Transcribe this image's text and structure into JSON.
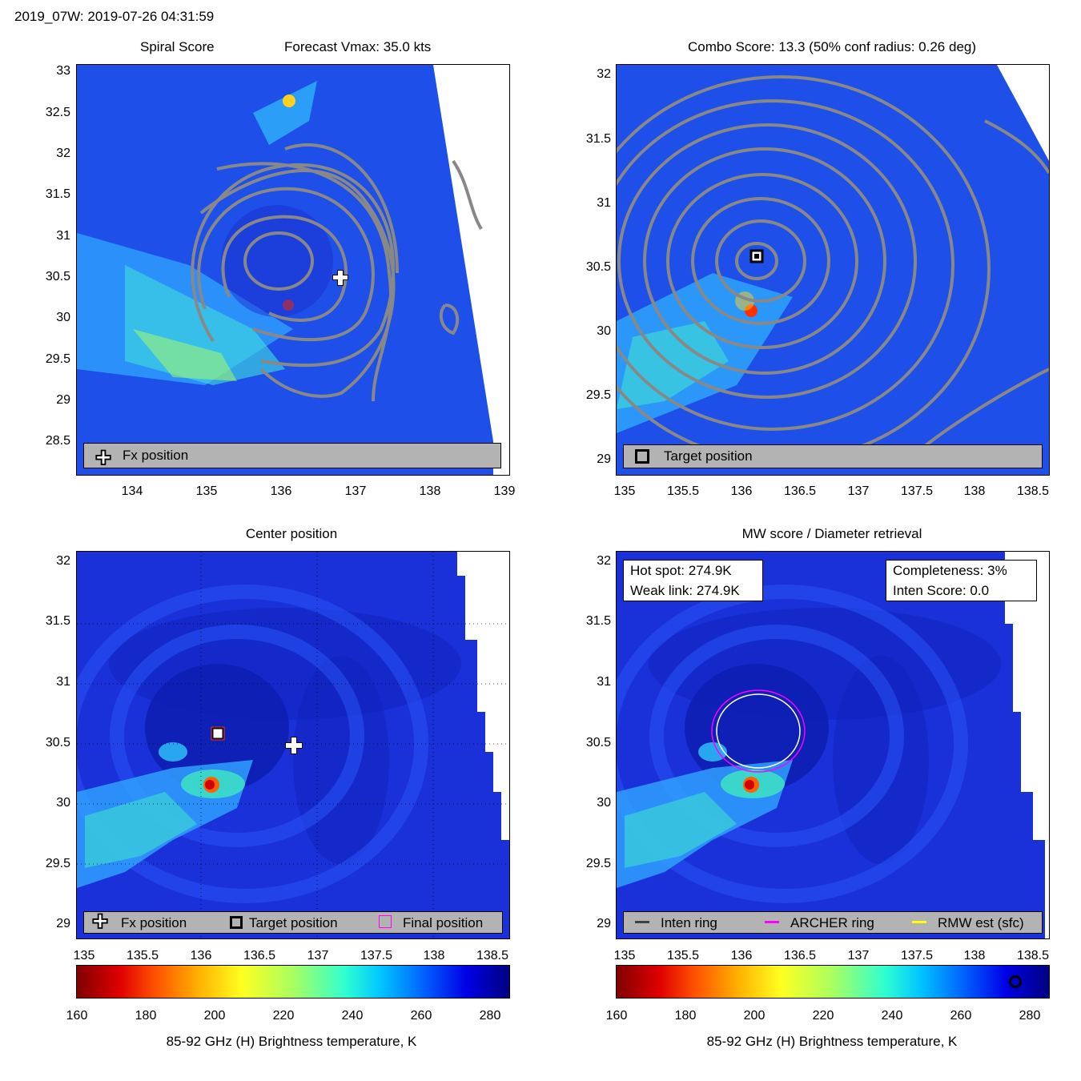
{
  "header": {
    "title": "2019_07W: 2019-07-26 04:31:59"
  },
  "panels": {
    "spiral": {
      "title_left": "Spiral Score",
      "title_right": "Forecast Vmax: 35.0 kts",
      "y_ticks": [
        "33",
        "32.5",
        "32",
        "31.5",
        "31",
        "30.5",
        "30",
        "29.5",
        "29",
        "28.5"
      ],
      "x_ticks": [
        "134",
        "135",
        "136",
        "137",
        "138",
        "139"
      ],
      "legend": "Fx position"
    },
    "combo": {
      "title": "Combo Score: 13.3  (50% conf radius: 0.26 deg)",
      "y_ticks": [
        "32",
        "31.5",
        "31",
        "30.5",
        "30",
        "29.5",
        "29"
      ],
      "x_ticks": [
        "135",
        "135.5",
        "136",
        "136.5",
        "137",
        "137.5",
        "138",
        "138.5"
      ],
      "legend": "Target position"
    },
    "center": {
      "title": "Center position",
      "y_ticks": [
        "32",
        "31.5",
        "31",
        "30.5",
        "30",
        "29.5",
        "29"
      ],
      "x_ticks": [
        "135",
        "135.5",
        "136",
        "136.5",
        "137",
        "137.5",
        "138",
        "138.5"
      ],
      "legend": {
        "fx": "Fx position",
        "target": "Target position",
        "final": "Final position"
      }
    },
    "mw": {
      "title": "MW score / Diameter retrieval",
      "y_ticks": [
        "32",
        "31.5",
        "31",
        "30.5",
        "30",
        "29.5",
        "29"
      ],
      "x_ticks": [
        "135",
        "135.5",
        "136",
        "136.5",
        "137",
        "137.5",
        "138",
        "138.5"
      ],
      "hot_spot": "Hot spot: 274.9K",
      "weak_link": "Weak link: 274.9K",
      "completeness": "Completeness: 3%",
      "inten_score": "Inten Score: 0.0",
      "legend": {
        "inten": "Inten ring",
        "archer": "ARCHER ring",
        "rmw": "RMW est (sfc)"
      }
    }
  },
  "colorbar": {
    "ticks": [
      "160",
      "180",
      "200",
      "220",
      "240",
      "260",
      "280"
    ],
    "label": "85-92 GHz (H) Brightness temperature, K",
    "colors": {
      "ring_inten": "#404040",
      "ring_archer": "#ff00ff",
      "ring_rmw": "#ffff00"
    }
  }
}
